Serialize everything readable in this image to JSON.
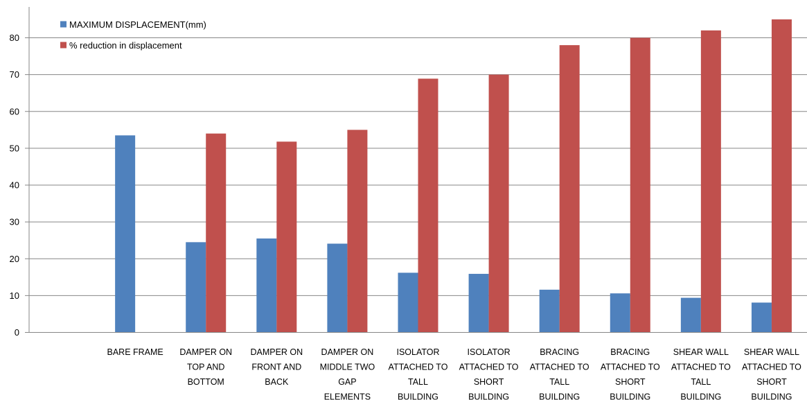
{
  "chart_data": {
    "type": "bar",
    "categories": [
      [
        ""
      ],
      [
        "BARE FRAME"
      ],
      [
        "DAMPER ON",
        "TOP AND",
        "BOTTOM"
      ],
      [
        "DAMPER ON",
        "FRONT AND",
        "BACK"
      ],
      [
        "DAMPER ON",
        "MIDDLE TWO",
        "GAP",
        "ELEMENTS"
      ],
      [
        "ISOLATOR",
        "ATTACHED TO",
        "TALL",
        "BUILDING"
      ],
      [
        "ISOLATOR",
        "ATTACHED TO",
        "SHORT",
        "BUILDING"
      ],
      [
        "BRACING",
        "ATTACHED TO",
        "TALL",
        "BUILDING"
      ],
      [
        "BRACING",
        "ATTACHED TO",
        "SHORT",
        "BUILDING"
      ],
      [
        "SHEAR WALL",
        "ATTACHED TO",
        "TALL",
        "BUILDING"
      ],
      [
        "SHEAR WALL",
        "ATTACHED TO",
        "SHORT",
        "BUILDING"
      ]
    ],
    "series": [
      {
        "name": "MAXIMUM DISPLACEMENT(mm)",
        "color": "#4f81bd",
        "values": [
          null,
          53.5,
          24.5,
          25.5,
          24.1,
          16.2,
          15.9,
          11.6,
          10.6,
          9.4,
          8.1
        ]
      },
      {
        "name": "% reduction in displacement",
        "color": "#c0504d",
        "values": [
          null,
          null,
          54,
          51.8,
          55,
          68.9,
          70,
          78,
          80,
          82,
          85
        ]
      }
    ],
    "ylim": [
      0,
      80
    ],
    "yticks": [
      0,
      10,
      20,
      30,
      40,
      50,
      60,
      70,
      80
    ],
    "grid": true,
    "legend": "top-left",
    "title": "",
    "xlabel": "",
    "ylabel": ""
  }
}
